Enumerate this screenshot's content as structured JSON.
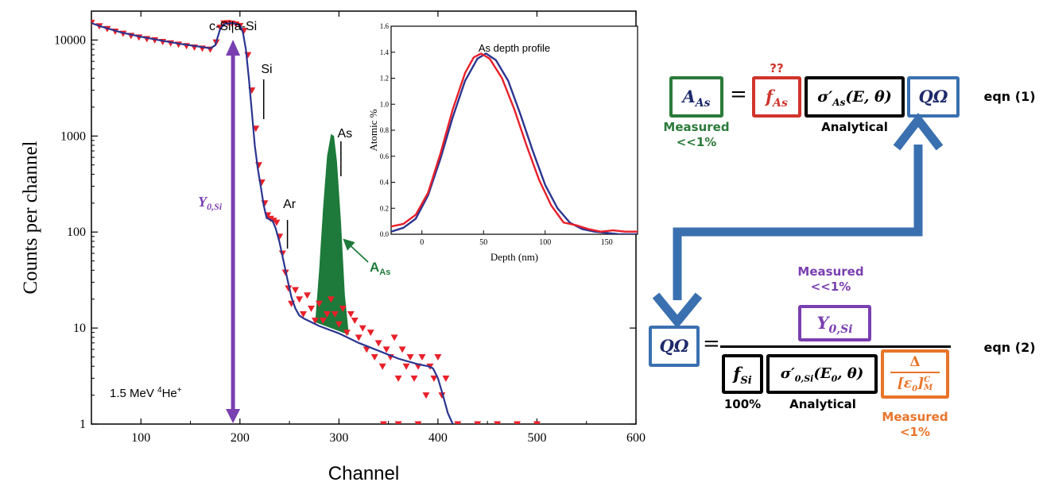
{
  "chart_data": [
    {
      "type": "scatter",
      "xlabel": "Channel",
      "ylabel": "Counts per channel",
      "xlim": [
        50,
        600
      ],
      "ylim": [
        1,
        20000
      ],
      "yscale": "log",
      "x_ticks": [
        "100",
        "200",
        "300",
        "400",
        "500",
        "600"
      ],
      "y_ticks": [
        "1",
        "10",
        "100",
        "1000",
        "10000"
      ],
      "annotations": {
        "surface_labels": "c-Si|a-Si",
        "si": "Si",
        "ar": "Ar",
        "as": "As",
        "area_label": "A",
        "area_sub": "As",
        "beam_label": "1.5 MeV",
        "beam_sup": "4",
        "beam_ion": "He",
        "beam_charge": "+",
        "yield_label": "Y",
        "yield_sub": "0,Si"
      },
      "series": [
        {
          "kind": "fit",
          "x": [
            50,
            60,
            80,
            100,
            120,
            140,
            160,
            170,
            175,
            180,
            184,
            188,
            192,
            196,
            200,
            203,
            206,
            209,
            212,
            215,
            218,
            221,
            224,
            227,
            230,
            233,
            236,
            240,
            244,
            248,
            252,
            256,
            260,
            265,
            270,
            280,
            300,
            320,
            340,
            360,
            380,
            390,
            395,
            400,
            405,
            410,
            415
          ],
          "y": [
            15000,
            13800,
            12000,
            10800,
            9900,
            9100,
            8500,
            8200,
            8800,
            13000,
            14600,
            14900,
            15000,
            14800,
            14200,
            12000,
            8000,
            4000,
            1800,
            800,
            460,
            300,
            190,
            140,
            135,
            130,
            110,
            78,
            50,
            32,
            21,
            16,
            13.5,
            12.5,
            11.8,
            10.5,
            8.8,
            7,
            5.8,
            4.8,
            4.2,
            4,
            3.8,
            3,
            2,
            1.3,
            1
          ]
        },
        {
          "kind": "data",
          "x": [
            50,
            58,
            66,
            74,
            82,
            90,
            98,
            106,
            114,
            122,
            130,
            138,
            146,
            154,
            162,
            170,
            176,
            180,
            184,
            188,
            192,
            196,
            200,
            204,
            208,
            212,
            216,
            219,
            222,
            225,
            228,
            231,
            234,
            237,
            240,
            243,
            246,
            249,
            252,
            256,
            260,
            264,
            268,
            272,
            276,
            280,
            284,
            288,
            292,
            296,
            300,
            304,
            308,
            312,
            316,
            320,
            324,
            328,
            332,
            336,
            340,
            344,
            348,
            352,
            356,
            360,
            364,
            368,
            372,
            376,
            380,
            384,
            388,
            392,
            396,
            400,
            404,
            408,
            345,
            360,
            380,
            420,
            440,
            460,
            480,
            500
          ],
          "y": [
            15200,
            14000,
            13100,
            12300,
            11700,
            11100,
            10700,
            10300,
            10000,
            9600,
            9300,
            9000,
            8700,
            8400,
            8200,
            8000,
            9500,
            13500,
            15000,
            15100,
            14900,
            14600,
            14100,
            12500,
            7000,
            3000,
            1200,
            500,
            330,
            200,
            150,
            138,
            132,
            126,
            90,
            60,
            38,
            26,
            18,
            25,
            20,
            14,
            22,
            16,
            12,
            18,
            12,
            14,
            20,
            14,
            11,
            16,
            9,
            14,
            12,
            8,
            10,
            6,
            9,
            5,
            7,
            4,
            6,
            5,
            8,
            3,
            6,
            4,
            5,
            3,
            4,
            5,
            2,
            4,
            3,
            5,
            2,
            3,
            1,
            1,
            1,
            1,
            1,
            1,
            1,
            1
          ]
        },
        {
          "kind": "area",
          "name": "As",
          "x": [
            276,
            280,
            284,
            288,
            292,
            295,
            298,
            302,
            306,
            310
          ],
          "y": [
            11.5,
            40,
            180,
            620,
            1050,
            1000,
            540,
            130,
            22,
            8.5
          ]
        }
      ]
    },
    {
      "type": "line",
      "title": "As depth profile",
      "xlabel": "Depth (nm)",
      "ylabel": "Atomic %",
      "xlim": [
        -25,
        175
      ],
      "ylim": [
        0,
        1.6
      ],
      "x_ticks": [
        "0",
        "50",
        "100",
        "150"
      ],
      "y_ticks": [
        "0.0",
        "0.2",
        "0.4",
        "0.6",
        "0.8",
        "1.0",
        "1.2",
        "1.4",
        "1.6"
      ],
      "series": [
        {
          "kind": "simulation",
          "x": [
            -25,
            -15,
            -5,
            5,
            15,
            25,
            35,
            45,
            52,
            60,
            70,
            80,
            90,
            100,
            110,
            120,
            130,
            140,
            150,
            160,
            175
          ],
          "y": [
            0.02,
            0.05,
            0.12,
            0.3,
            0.58,
            0.9,
            1.18,
            1.35,
            1.39,
            1.34,
            1.18,
            0.92,
            0.64,
            0.38,
            0.2,
            0.09,
            0.04,
            0.02,
            0.01,
            0.0,
            0.0
          ]
        },
        {
          "kind": "measured",
          "x": [
            -25,
            -15,
            -5,
            5,
            15,
            25,
            35,
            42,
            48,
            55,
            65,
            75,
            85,
            95,
            105,
            115,
            125,
            135,
            145,
            155,
            165,
            175
          ],
          "y": [
            0.06,
            0.08,
            0.15,
            0.32,
            0.62,
            0.96,
            1.24,
            1.36,
            1.39,
            1.35,
            1.2,
            0.96,
            0.68,
            0.42,
            0.22,
            0.09,
            0.07,
            0.04,
            0.02,
            0.03,
            0.02,
            0.02
          ]
        }
      ]
    }
  ],
  "equations": {
    "eq1": {
      "lhs": "A",
      "lhs_sub": "As",
      "equals": "=",
      "f": "f",
      "f_sub": "As",
      "sigma": "σ′",
      "sigma_sub": "As",
      "sigma_args": "(E, θ)",
      "qomega": "QΩ",
      "unknown": "??",
      "measured_label": "Measured",
      "measured_value": "<<1%",
      "analytical_label": "Analytical",
      "tag": "eqn (1)"
    },
    "eq2": {
      "lhs": "QΩ",
      "equals": "=",
      "numerator": "Y",
      "numerator_sub": "0,Si",
      "numerator_label": "Measured",
      "numerator_value": "<<1%",
      "f": "f",
      "f_sub": "Si",
      "f_value": "100%",
      "sigma": "σ′",
      "sigma_sub": "0,Si",
      "sigma_args": "(E",
      "sigma_args_sub": "0",
      "sigma_args_tail": ", θ)",
      "analytical_label": "Analytical",
      "delta": "Δ",
      "eps": "[ε",
      "eps_sub_inner": "0",
      "eps_close": "]",
      "eps_sup": "C",
      "eps_sub": "M",
      "delta_label": "Measured",
      "delta_value": "<1%",
      "tag": "eqn (2)"
    }
  },
  "colors": {
    "fit": "#2b3590",
    "data": "#e8202a",
    "area": "#1d7a3a",
    "yield_arrow": "#7a3fb0",
    "measured_green": "#2a7a3a",
    "unknown_red": "#d0342c",
    "qomega_blue": "#3a70b0",
    "orange": "#e8742a",
    "purple": "#7a3fb0"
  }
}
